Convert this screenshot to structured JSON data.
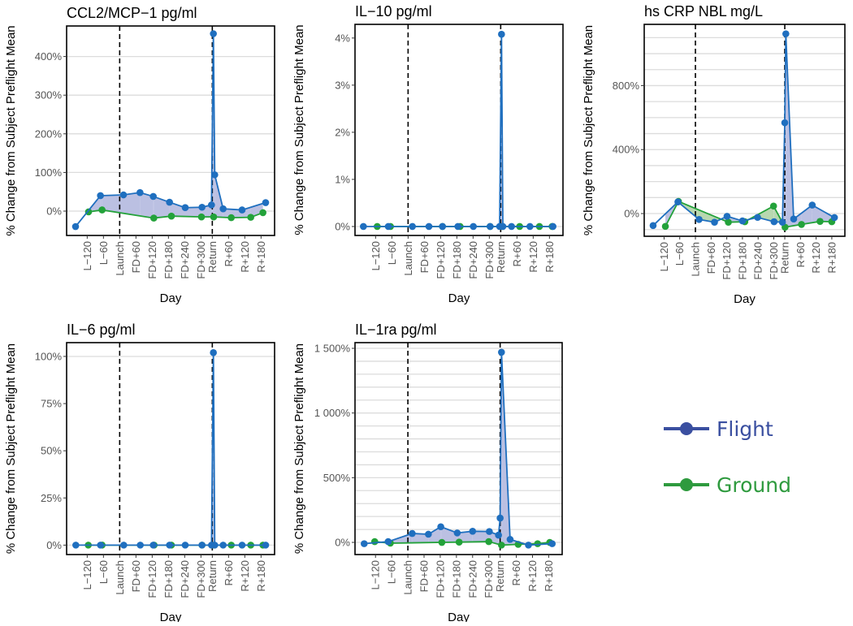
{
  "chart_data": {
    "x_categories": [
      {
        "label": "L−120",
        "x": -120
      },
      {
        "label": "L−60",
        "x": -60
      },
      {
        "label": "Launch",
        "x": 0
      },
      {
        "label": "FD+60",
        "x": 60
      },
      {
        "label": "FD+120",
        "x": 120
      },
      {
        "label": "FD+180",
        "x": 180
      },
      {
        "label": "FD+240",
        "x": 240
      },
      {
        "label": "FD+300",
        "x": 300
      },
      {
        "label": "Return",
        "x": 342
      },
      {
        "label": "R+60",
        "x": 402
      },
      {
        "label": "R+120",
        "x": 462
      },
      {
        "label": "R+180",
        "x": 522
      }
    ],
    "xlim": [
      -196,
      572
    ],
    "vlines": [
      0,
      342
    ],
    "xlabel": "Day",
    "ylabel": "% Change from Subject Preflight Mean",
    "legend": {
      "placement": "right",
      "items": [
        {
          "label": "Flight",
          "color": "#3a4fa0"
        },
        {
          "label": "Ground",
          "color": "#2e9a3e"
        }
      ]
    },
    "colors": {
      "flight": "#1f6fbf",
      "ground": "#23a23a",
      "fill_flight_above": "#b7bde0",
      "fill_ground_above": "#b4d6ac"
    },
    "panels": [
      {
        "type": "line",
        "title": "CCL2/MCP−1 pg/ml",
        "ylim": [
          -63,
          479
        ],
        "yticks": [
          {
            "v": 0,
            "label": "0%"
          },
          {
            "v": 100,
            "label": "100%"
          },
          {
            "v": 200,
            "label": "200%"
          },
          {
            "v": 300,
            "label": "300%"
          },
          {
            "v": 400,
            "label": "400%"
          }
        ],
        "gridlines": [
          0,
          100,
          200,
          300,
          400
        ],
        "series": [
          {
            "name": "Flight",
            "points": [
              [
                -163,
                -40
              ],
              [
                -71,
                40
              ],
              [
                14,
                42
              ],
              [
                75,
                48
              ],
              [
                124,
                38
              ],
              [
                184,
                23
              ],
              [
                242,
                9
              ],
              [
                304,
                10
              ],
              [
                339,
                16
              ],
              [
                346,
                459
              ],
              [
                351,
                94
              ],
              [
                382,
                6
              ],
              [
                452,
                3
              ],
              [
                539,
                22
              ]
            ]
          },
          {
            "name": "Ground",
            "points": [
              [
                -115,
                -2
              ],
              [
                -65,
                3
              ],
              [
                126,
                -18
              ],
              [
                191,
                -13
              ],
              [
                302,
                -15
              ],
              [
                347,
                -15
              ],
              [
                412,
                -17
              ],
              [
                484,
                -16
              ],
              [
                529,
                -4
              ]
            ]
          }
        ]
      },
      {
        "type": "line",
        "title": "IL−10 pg/ml",
        "ylim": [
          -0.19,
          4.29
        ],
        "yticks": [
          {
            "v": 0,
            "label": "0%"
          },
          {
            "v": 1,
            "label": "1%"
          },
          {
            "v": 2,
            "label": "2%"
          },
          {
            "v": 3,
            "label": "3%"
          },
          {
            "v": 4,
            "label": "4%"
          }
        ],
        "gridlines": [
          0
        ],
        "series": [
          {
            "name": "Flight",
            "points": [
              [
                -165,
                0
              ],
              [
                -73,
                0
              ],
              [
                16,
                0
              ],
              [
                77,
                0
              ],
              [
                127,
                0
              ],
              [
                184,
                0
              ],
              [
                241,
                0
              ],
              [
                303,
                0
              ],
              [
                338,
                0
              ],
              [
                345,
                4.08
              ],
              [
                350,
                0
              ],
              [
                382,
                0
              ],
              [
                450,
                0
              ],
              [
                535,
                0
              ]
            ]
          },
          {
            "name": "Ground",
            "points": [
              [
                -114,
                0
              ],
              [
                -65,
                0
              ],
              [
                127,
                0
              ],
              [
                192,
                0
              ],
              [
                303,
                0
              ],
              [
                348,
                0
              ],
              [
                412,
                0
              ],
              [
                485,
                0
              ],
              [
                532,
                0
              ]
            ]
          }
        ]
      },
      {
        "type": "line",
        "title": "hs CRP NBL mg/L",
        "ylim": [
          -142,
          1183
        ],
        "yticks": [
          {
            "v": 0,
            "label": "0%"
          },
          {
            "v": 400,
            "label": "400%"
          },
          {
            "v": 800,
            "label": "800%"
          }
        ],
        "gridlines": [
          -100,
          0,
          100,
          200,
          300,
          400,
          500,
          600,
          700,
          800,
          900,
          1000,
          1100
        ],
        "series": [
          {
            "name": "Flight",
            "points": [
              [
                -162,
                -75
              ],
              [
                -67,
                73
              ],
              [
                14,
                -37
              ],
              [
                73,
                -54
              ],
              [
                121,
                -17
              ],
              [
                180,
                -46
              ],
              [
                238,
                -24
              ],
              [
                301,
                -51
              ],
              [
                333,
                -54
              ],
              [
                342,
                568
              ],
              [
                346,
                1124
              ],
              [
                376,
                -34
              ],
              [
                447,
                53
              ],
              [
                532,
                -25
              ]
            ]
          },
          {
            "name": "Ground",
            "points": [
              [
                -115,
                -80
              ],
              [
                -65,
                76
              ],
              [
                126,
                -54
              ],
              [
                189,
                -51
              ],
              [
                299,
                47
              ],
              [
                343,
                -85
              ],
              [
                406,
                -68
              ],
              [
                477,
                -49
              ],
              [
                522,
                -51
              ]
            ]
          }
        ]
      },
      {
        "type": "line",
        "title": "IL−6 pg/ml",
        "ylim": [
          -5,
          107.3
        ],
        "yticks": [
          {
            "v": 0,
            "label": "0%"
          },
          {
            "v": 25,
            "label": "25%"
          },
          {
            "v": 50,
            "label": "50%"
          },
          {
            "v": 75,
            "label": "75%"
          },
          {
            "v": 100,
            "label": "100%"
          }
        ],
        "gridlines": [
          0,
          100
        ],
        "series": [
          {
            "name": "Flight",
            "points": [
              [
                -162,
                0
              ],
              [
                -71,
                0
              ],
              [
                15,
                0
              ],
              [
                76,
                0
              ],
              [
                124,
                0
              ],
              [
                184,
                0
              ],
              [
                242,
                0
              ],
              [
                304,
                0
              ],
              [
                339,
                0
              ],
              [
                346,
                102
              ],
              [
                351,
                0
              ],
              [
                382,
                0
              ],
              [
                452,
                0
              ],
              [
                539,
                0
              ]
            ]
          },
          {
            "name": "Ground",
            "points": [
              [
                -116,
                0
              ],
              [
                -65,
                0
              ],
              [
                127,
                0
              ],
              [
                191,
                0
              ],
              [
                304,
                0
              ],
              [
                349,
                0
              ],
              [
                412,
                0
              ],
              [
                484,
                0
              ],
              [
                529,
                0
              ]
            ]
          }
        ]
      },
      {
        "type": "line",
        "title": "IL−1ra pg/ml",
        "ylim": [
          -94,
          1544
        ],
        "yticks": [
          {
            "v": 0,
            "label": "0%"
          },
          {
            "v": 500,
            "label": "500%"
          },
          {
            "v": 1000,
            "label": "1 000%"
          },
          {
            "v": 1500,
            "label": "1 500%"
          }
        ],
        "gridlines": [
          0,
          100,
          200,
          300,
          400,
          500,
          600,
          700,
          800,
          900,
          1000,
          1100,
          1200,
          1300,
          1400,
          1500
        ],
        "series": [
          {
            "name": "Flight",
            "points": [
              [
                -162,
                -10
              ],
              [
                -73,
                6
              ],
              [
                16,
                69
              ],
              [
                76,
                63
              ],
              [
                122,
                121
              ],
              [
                183,
                73
              ],
              [
                240,
                86
              ],
              [
                302,
                84
              ],
              [
                336,
                56
              ],
              [
                342,
                188
              ],
              [
                347,
                1470
              ],
              [
                379,
                23
              ],
              [
                447,
                -21
              ],
              [
                535,
                -10
              ]
            ]
          },
          {
            "name": "Ground",
            "points": [
              [
                -123,
                6
              ],
              [
                -65,
                -6
              ],
              [
                126,
                0
              ],
              [
                190,
                2
              ],
              [
                300,
                6
              ],
              [
                347,
                -21
              ],
              [
                409,
                -15
              ],
              [
                481,
                -10
              ],
              [
                526,
                0
              ]
            ]
          }
        ]
      }
    ]
  }
}
